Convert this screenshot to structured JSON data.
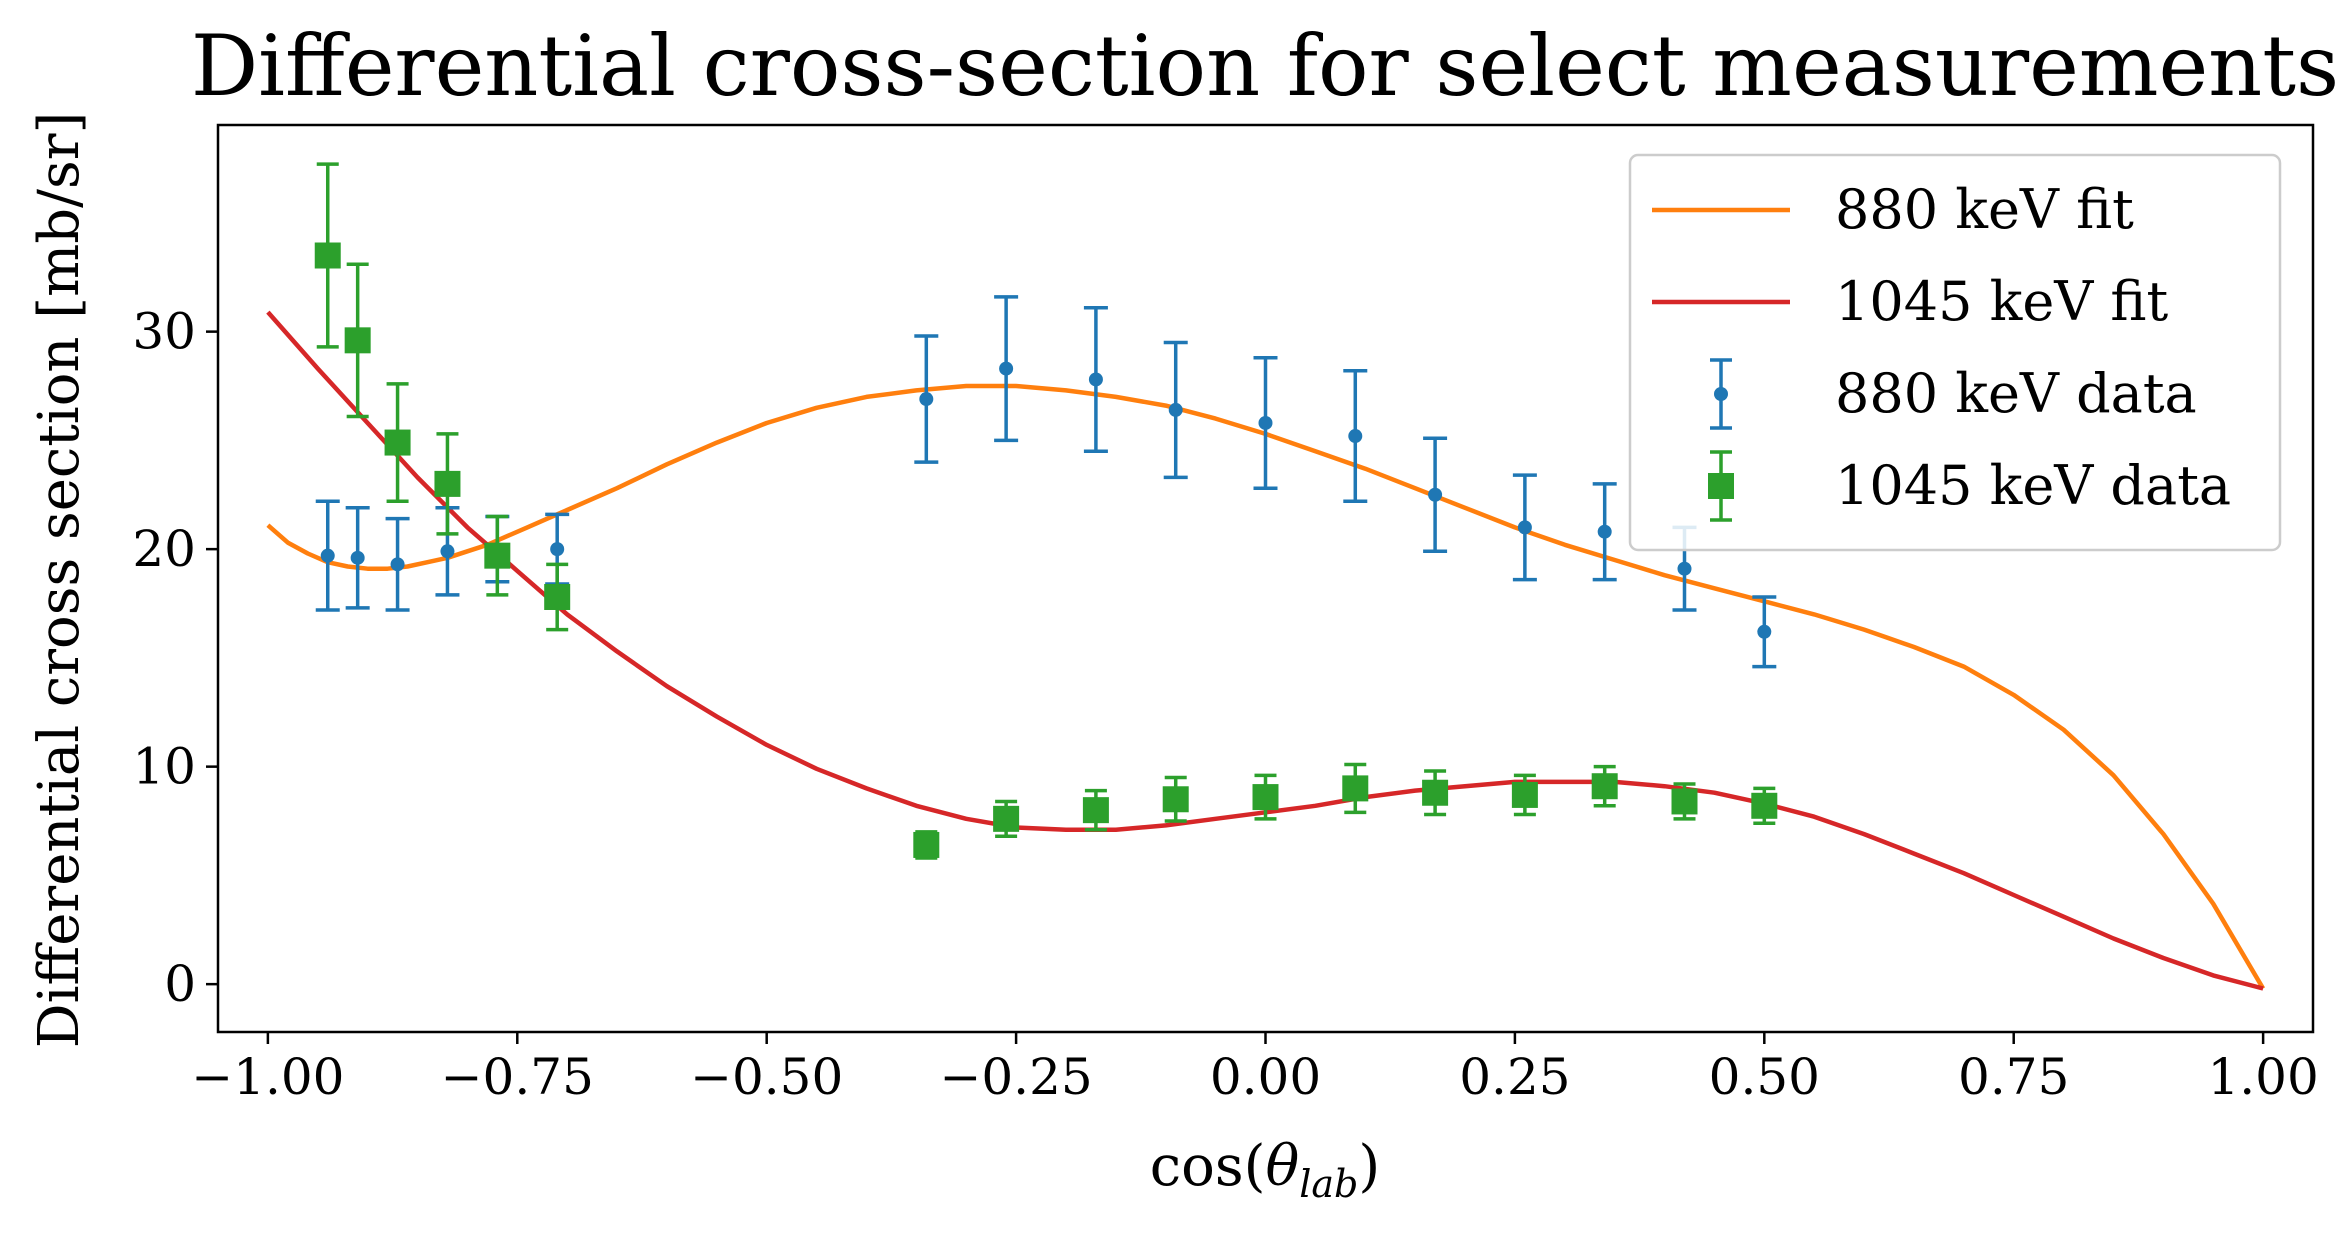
{
  "chart_data": {
    "type": "scatter",
    "title": "Differential cross-section for select measurements",
    "xlabel": "cos(θlab)",
    "xlabel_parts": {
      "base": "cos(",
      "symbol": "θ",
      "subscript": "lab",
      "close": ")"
    },
    "ylabel": "Differential cross section [mb/sr]",
    "xlim": [
      -1.05,
      1.05
    ],
    "ylim": [
      -2.2,
      39.5
    ],
    "x_ticks": [
      -1.0,
      -0.75,
      -0.5,
      -0.25,
      0.0,
      0.25,
      0.5,
      0.75,
      1.0
    ],
    "x_tick_labels": [
      "−1.00",
      "−0.75",
      "−0.50",
      "−0.25",
      "0.00",
      "0.25",
      "0.50",
      "0.75",
      "1.00"
    ],
    "y_ticks": [
      0,
      10,
      20,
      30
    ],
    "y_tick_labels": [
      "0",
      "10",
      "20",
      "30"
    ],
    "grid": false,
    "legend_position": "top-right",
    "legend_order": [
      "fit880",
      "fit1045",
      "data880",
      "data1045"
    ],
    "series": {
      "fit880": {
        "name": "880 keV fit",
        "kind": "line",
        "color": "#ff7f0e",
        "x": [
          -1.0,
          -0.98,
          -0.96,
          -0.94,
          -0.92,
          -0.9,
          -0.88,
          -0.86,
          -0.84,
          -0.82,
          -0.8,
          -0.78,
          -0.76,
          -0.74,
          -0.72,
          -0.7,
          -0.65,
          -0.6,
          -0.55,
          -0.5,
          -0.45,
          -0.4,
          -0.35,
          -0.3,
          -0.25,
          -0.2,
          -0.15,
          -0.1,
          -0.05,
          0.0,
          0.05,
          0.1,
          0.15,
          0.2,
          0.25,
          0.3,
          0.35,
          0.4,
          0.45,
          0.5,
          0.55,
          0.6,
          0.65,
          0.7,
          0.75,
          0.8,
          0.85,
          0.9,
          0.95,
          1.0
        ],
        "y": [
          21.1,
          20.3,
          19.8,
          19.4,
          19.2,
          19.1,
          19.1,
          19.2,
          19.4,
          19.6,
          19.9,
          20.2,
          20.6,
          21.0,
          21.4,
          21.8,
          22.8,
          23.9,
          24.9,
          25.8,
          26.5,
          27.0,
          27.3,
          27.5,
          27.5,
          27.3,
          27.0,
          26.6,
          26.0,
          25.3,
          24.5,
          23.7,
          22.8,
          21.9,
          21.0,
          20.2,
          19.5,
          18.8,
          18.2,
          17.6,
          17.0,
          16.3,
          15.5,
          14.6,
          13.3,
          11.7,
          9.6,
          6.9,
          3.7,
          -0.2
        ]
      },
      "fit1045": {
        "name": "1045 keV fit",
        "kind": "line",
        "color": "#d62728",
        "x": [
          -1.0,
          -0.95,
          -0.9,
          -0.85,
          -0.8,
          -0.75,
          -0.7,
          -0.65,
          -0.6,
          -0.55,
          -0.5,
          -0.45,
          -0.4,
          -0.35,
          -0.3,
          -0.25,
          -0.2,
          -0.15,
          -0.1,
          -0.05,
          0.0,
          0.05,
          0.1,
          0.15,
          0.2,
          0.25,
          0.3,
          0.35,
          0.4,
          0.45,
          0.5,
          0.55,
          0.6,
          0.65,
          0.7,
          0.75,
          0.8,
          0.85,
          0.9,
          0.95,
          1.0
        ],
        "y": [
          30.9,
          28.3,
          25.8,
          23.3,
          21.0,
          19.0,
          17.0,
          15.3,
          13.7,
          12.3,
          11.0,
          9.9,
          9.0,
          8.2,
          7.6,
          7.2,
          7.1,
          7.1,
          7.3,
          7.6,
          7.9,
          8.2,
          8.6,
          8.9,
          9.1,
          9.3,
          9.3,
          9.3,
          9.1,
          8.8,
          8.3,
          7.7,
          6.9,
          6.0,
          5.1,
          4.1,
          3.1,
          2.1,
          1.2,
          0.4,
          -0.2
        ]
      },
      "data880": {
        "name": "880 keV data",
        "kind": "errorbar",
        "marker": "circle",
        "color": "#1f77b4",
        "x": [
          -0.94,
          -0.91,
          -0.87,
          -0.82,
          -0.77,
          -0.71,
          -0.34,
          -0.26,
          -0.17,
          -0.09,
          0.0,
          0.09,
          0.17,
          0.26,
          0.34,
          0.42,
          0.5
        ],
        "y": [
          19.7,
          19.6,
          19.3,
          19.9,
          20.0,
          20.0,
          26.9,
          28.3,
          27.8,
          26.4,
          25.8,
          25.2,
          22.5,
          21.0,
          20.8,
          19.1,
          16.2
        ],
        "yerr": [
          2.5,
          2.3,
          2.1,
          2.0,
          1.5,
          1.6,
          2.9,
          3.3,
          3.3,
          3.1,
          3.0,
          3.0,
          2.6,
          2.4,
          2.2,
          1.9,
          1.6
        ]
      },
      "data1045": {
        "name": "1045 keV data",
        "kind": "errorbar",
        "marker": "square",
        "color": "#2ca02c",
        "x": [
          -0.94,
          -0.91,
          -0.87,
          -0.82,
          -0.77,
          -0.71,
          -0.34,
          -0.26,
          -0.17,
          -0.09,
          0.0,
          0.09,
          0.17,
          0.26,
          0.34,
          0.42,
          0.5
        ],
        "y": [
          33.5,
          29.6,
          24.9,
          23.0,
          19.7,
          17.8,
          6.4,
          7.6,
          8.0,
          8.5,
          8.6,
          9.0,
          8.8,
          8.7,
          9.1,
          8.4,
          8.2
        ],
        "yerr": [
          4.2,
          3.5,
          2.7,
          2.3,
          1.8,
          1.5,
          0.6,
          0.8,
          0.9,
          1.0,
          1.0,
          1.1,
          1.0,
          0.9,
          0.9,
          0.8,
          0.8
        ]
      }
    }
  }
}
